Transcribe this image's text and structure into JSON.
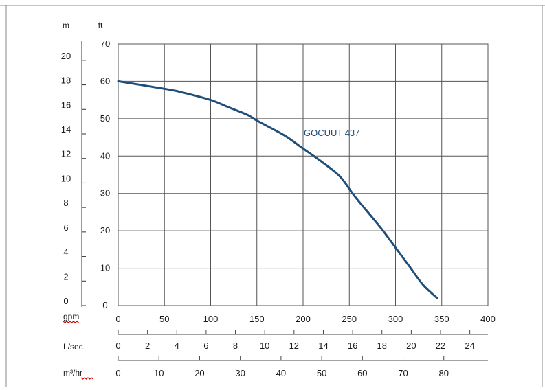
{
  "chart_data": {
    "type": "line",
    "title": "",
    "series": [
      {
        "name": "GOCUUT 437",
        "color": "#1f4e79",
        "x": [
          0,
          50,
          70,
          100,
          120,
          140,
          150,
          180,
          200,
          220,
          240,
          255,
          270,
          285,
          300,
          315,
          330,
          345
        ],
        "y": [
          60,
          58,
          57,
          55,
          53,
          51,
          49.5,
          45.5,
          42,
          38.5,
          34.5,
          29.5,
          25,
          20.5,
          15.5,
          10.5,
          5.5,
          2
        ]
      }
    ],
    "axes": {
      "x_primary": {
        "unit": "gpm",
        "range": [
          0,
          400
        ],
        "ticks": [
          "0",
          "50",
          "100",
          "150",
          "200",
          "250",
          "300",
          "350",
          "400"
        ]
      },
      "y_primary": {
        "unit": "ft",
        "range": [
          0,
          70
        ],
        "ticks": [
          "0",
          "10",
          "20",
          "30",
          "40",
          "50",
          "60",
          "70"
        ]
      },
      "y_secondary": {
        "unit": "m",
        "range": [
          0,
          21.34
        ],
        "ticks": [
          "0",
          "2",
          "4",
          "6",
          "8",
          "10",
          "12",
          "14",
          "16",
          "18",
          "20"
        ]
      },
      "x_lps": {
        "unit": "L/sec",
        "ticks": [
          "0",
          "2",
          "4",
          "6",
          "8",
          "10",
          "12",
          "14",
          "16",
          "18",
          "20",
          "22",
          "24"
        ]
      },
      "x_m3hr": {
        "unit": "m³/hr",
        "ticks": [
          "0",
          "10",
          "20",
          "30",
          "40",
          "50",
          "60",
          "70",
          "80"
        ]
      }
    },
    "grid": true,
    "colors": {
      "grid": "#555555",
      "curve": "#1f4e79",
      "spellcheck_underline": "#d00000"
    }
  }
}
